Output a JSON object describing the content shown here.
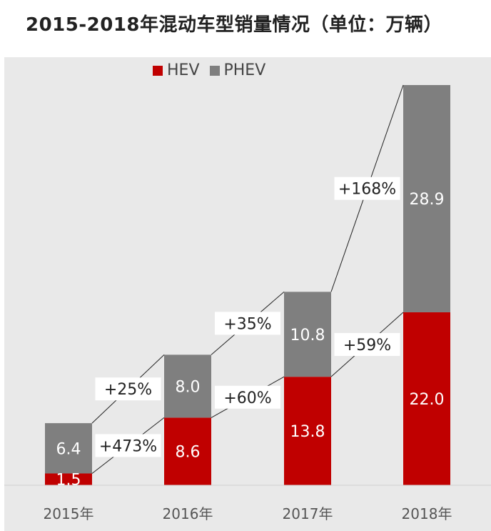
{
  "chart_data": {
    "type": "bar",
    "stacked": true,
    "title": "2015-2018年混动车型销量情况（单位：万辆）",
    "categories": [
      "2015年",
      "2016年",
      "2017年",
      "2018年"
    ],
    "series": [
      {
        "name": "HEV",
        "color": "#c00000",
        "values": [
          1.5,
          8.6,
          13.8,
          22.0
        ],
        "labels": [
          "1.5",
          "8.6",
          "13.8",
          "22.0"
        ]
      },
      {
        "name": "PHEV",
        "color": "#7f7f7f",
        "values": [
          6.4,
          8.0,
          10.8,
          28.9
        ],
        "labels": [
          "6.4",
          "8.0",
          "10.8",
          "28.9"
        ]
      }
    ],
    "growth_annotations": {
      "HEV": [
        "+473%",
        "+60%",
        "+59%"
      ],
      "PHEV": [
        "+25%",
        "+35%",
        "+168%"
      ]
    },
    "legend_position": "top-center",
    "grid": false
  }
}
